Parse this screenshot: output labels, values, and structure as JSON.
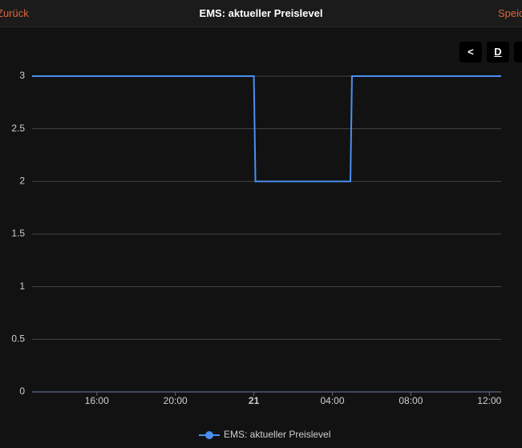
{
  "header": {
    "back": "Zurück",
    "title": "EMS: aktueller Preislevel",
    "save": "Speichern"
  },
  "toolbar": {
    "prev": "<",
    "period": "D"
  },
  "chart_data": {
    "type": "line",
    "series": [
      {
        "name": "EMS: aktueller Preislevel",
        "color": "#4a8ff0",
        "x": [
          12.7,
          24,
          24.08,
          28.92,
          29,
          36.6
        ],
        "values": [
          3,
          3,
          2,
          2,
          3,
          3
        ]
      }
    ],
    "xlim": [
      12.7,
      36.6
    ],
    "xticks": [
      {
        "value": 16,
        "label": "16:00"
      },
      {
        "value": 20,
        "label": "20:00"
      },
      {
        "value": 24,
        "label": "21"
      },
      {
        "value": 28,
        "label": "04:00"
      },
      {
        "value": 32,
        "label": "08:00"
      },
      {
        "value": 36,
        "label": "12:00"
      }
    ],
    "ylim": [
      0,
      3
    ],
    "yticks": [
      0,
      0.5,
      1,
      1.5,
      2,
      2.5,
      3
    ],
    "grid": true,
    "legend": "bottom"
  }
}
